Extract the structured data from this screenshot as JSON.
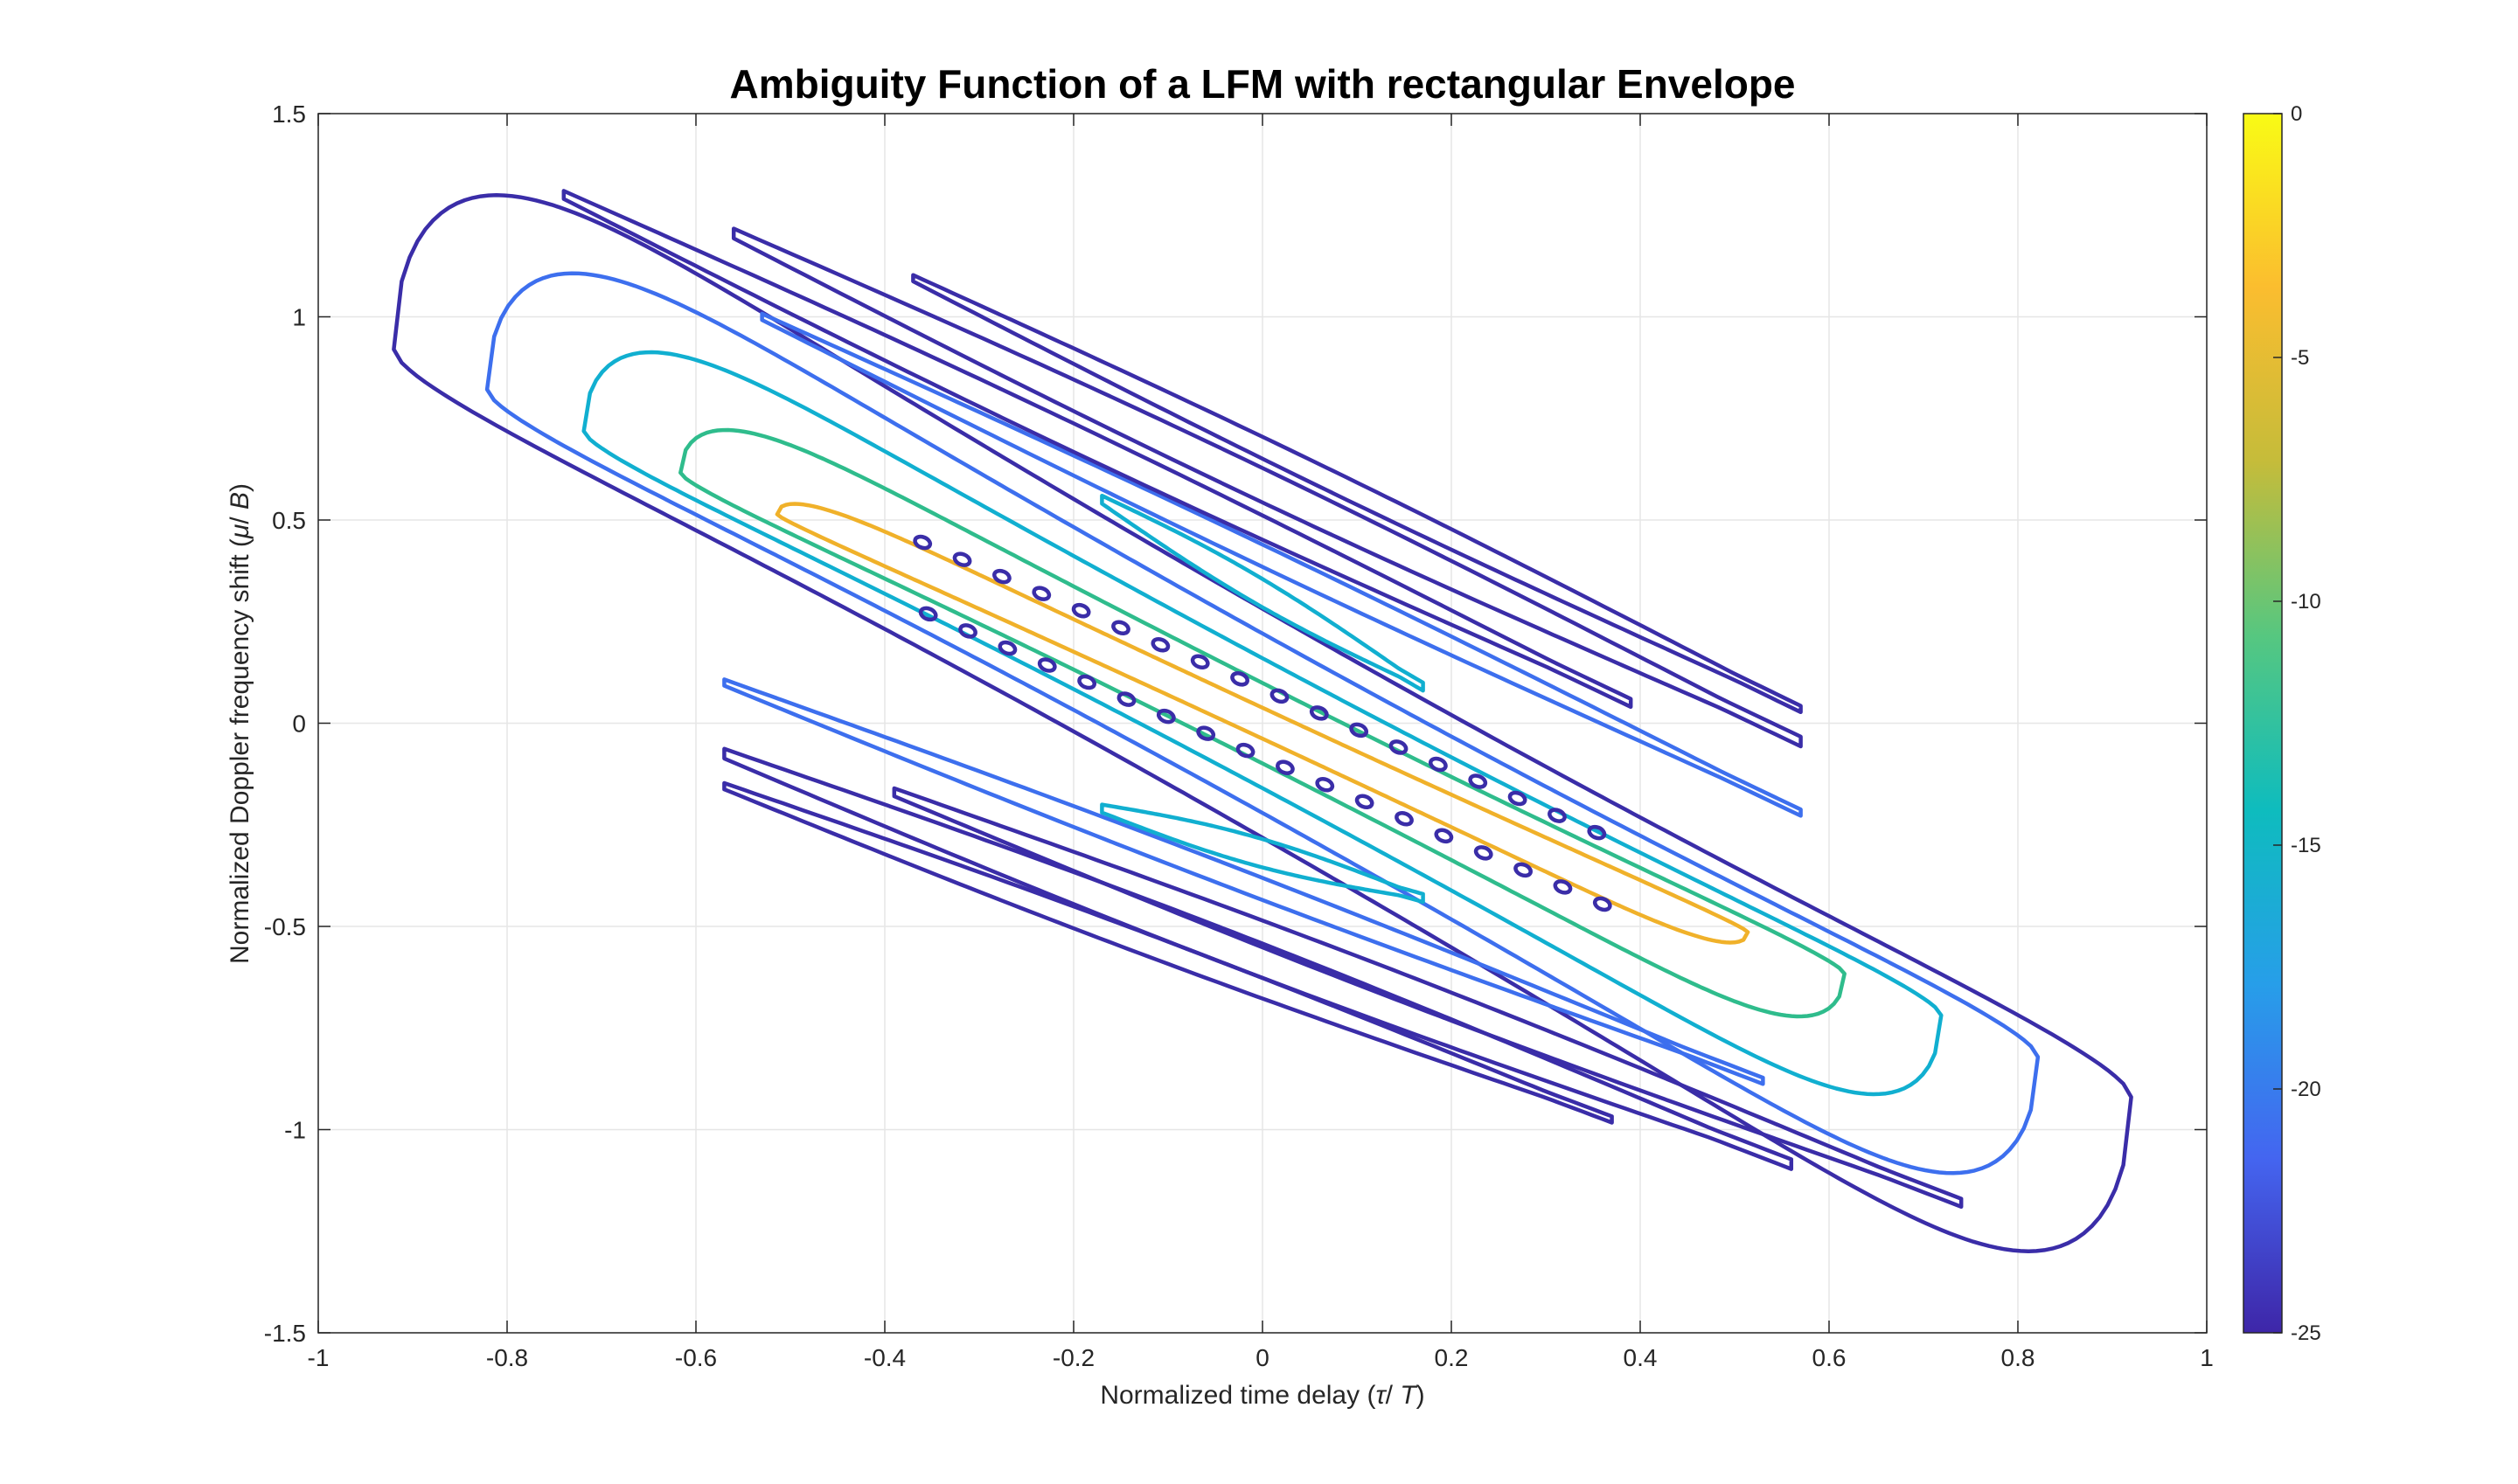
{
  "chart_data": {
    "type": "contour",
    "title": "Ambiguity Function of a LFM with rectangular Envelope",
    "xlabel": {
      "prefix": "Normalized time delay (",
      "var": "τ",
      "sep": "/ ",
      "var2": "T",
      "suffix": ")"
    },
    "ylabel": {
      "prefix": "Normalized Doppler frequency shift (",
      "var": "μ",
      "sep": "/ ",
      "var2": "B",
      "suffix": ")"
    },
    "xlim": [
      -1,
      1
    ],
    "ylim": [
      -1.5,
      1.5
    ],
    "xticks": [
      -1,
      -0.8,
      -0.6,
      -0.4,
      -0.2,
      0,
      0.2,
      0.4,
      0.6,
      0.8,
      1
    ],
    "yticks": [
      -1.5,
      -1,
      -0.5,
      0,
      0.5,
      1,
      1.5
    ],
    "grid": true,
    "colorbar": {
      "range": [
        -25,
        0
      ],
      "ticks": [
        -25,
        -20,
        -15,
        -10,
        -5,
        0
      ],
      "colormap": "parula",
      "stops": [
        "#3e26a8",
        "#4465f0",
        "#279ee9",
        "#0ebcbe",
        "#56c780",
        "#c5bc3a",
        "#fbbd2f",
        "#f9fb15"
      ]
    },
    "contour_levels": [
      {
        "level": -3,
        "color": "#f0b12a",
        "lobe_width": 0.05
      },
      {
        "level": -10,
        "color": "#2fbc8c",
        "lobe_width": 0.13
      },
      {
        "level": -15,
        "color": "#11afd0",
        "lobe_width": 0.21
      },
      {
        "level": -20,
        "color": "#3d6fee",
        "lobe_width": 0.29
      },
      {
        "level": -25,
        "color": "#3a2da8",
        "lobe_width": 0.37
      }
    ],
    "sidelobe_tau_ranges": [
      {
        "level": -20,
        "color": "#3d6fee",
        "tau": [
          -0.53,
          0.57
        ]
      },
      {
        "level": -25,
        "color": "#3a2da8",
        "tau": [
          -0.74,
          0.39
        ]
      },
      {
        "level": -25,
        "color": "#3a2da8",
        "tau": [
          -0.56,
          0.57
        ]
      },
      {
        "level": -25,
        "color": "#3a2da8",
        "tau": [
          -0.37,
          0.57
        ]
      },
      {
        "level": -15,
        "color": "#11afd0",
        "tau": [
          -0.17,
          0.17
        ]
      }
    ]
  }
}
